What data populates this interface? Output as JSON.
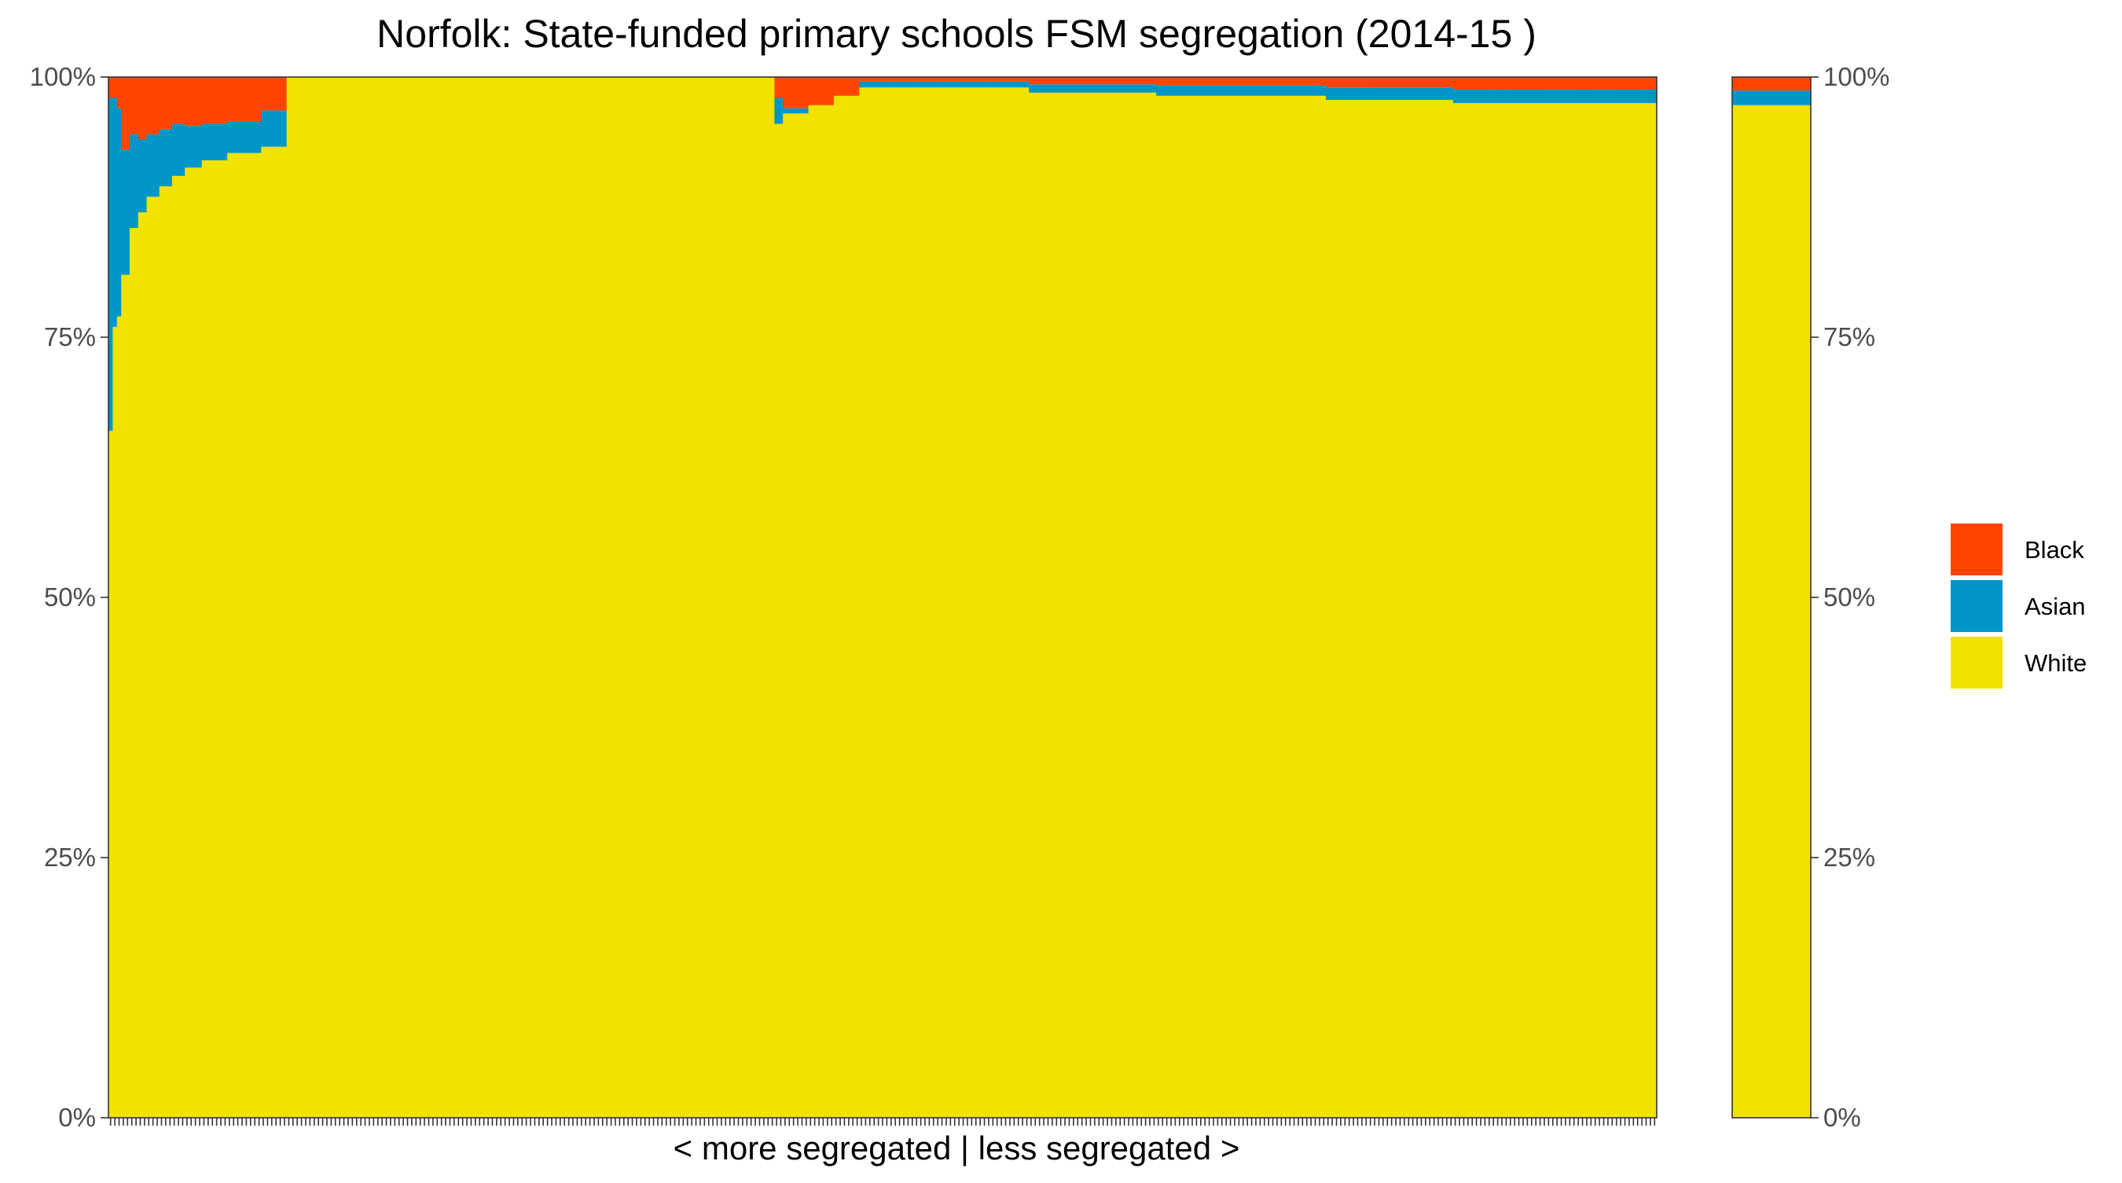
{
  "chart_data": {
    "type": "bar",
    "stacked": true,
    "normalized": true,
    "title": "Norfolk: State-funded primary schools FSM segregation (2014-15 )",
    "xlabel": "< more segregated | less segregated >",
    "ylabel": "",
    "ylim": [
      0,
      100
    ],
    "y_ticks": [
      "0%",
      "25%",
      "50%",
      "75%",
      "100%"
    ],
    "y_tick_values": [
      0,
      25,
      50,
      75,
      100
    ],
    "y_axis_both_sides": true,
    "grid": false,
    "legend_position": "right",
    "legend": [
      {
        "name": "Black",
        "color": "#FF4500"
      },
      {
        "name": "Asian",
        "color": "#0096C8"
      },
      {
        "name": "White",
        "color": "#F2E200"
      }
    ],
    "schools_panel": {
      "description_units": "percent of FSM pupils; each school one bar, ordered from more to less segregated",
      "segments": [
        {
          "count": 1,
          "white": 66,
          "asian": 32,
          "black": 2
        },
        {
          "count": 1,
          "white": 76,
          "asian": 22,
          "black": 2
        },
        {
          "count": 1,
          "white": 77,
          "asian": 20,
          "black": 3
        },
        {
          "count": 2,
          "white": 81,
          "asian": 12,
          "black": 7
        },
        {
          "count": 2,
          "white": 85.5,
          "asian": 9,
          "black": 5.5
        },
        {
          "count": 2,
          "white": 87,
          "asian": 7,
          "black": 6
        },
        {
          "count": 3,
          "white": 88.5,
          "asian": 6,
          "black": 5.5
        },
        {
          "count": 3,
          "white": 89.5,
          "asian": 5.5,
          "black": 5
        },
        {
          "count": 3,
          "white": 90.5,
          "asian": 5,
          "black": 4.5
        },
        {
          "count": 4,
          "white": 91.3,
          "asian": 4,
          "black": 4.7
        },
        {
          "count": 6,
          "white": 92,
          "asian": 3.5,
          "black": 4.5
        },
        {
          "count": 8,
          "white": 92.7,
          "asian": 3,
          "black": 4.3
        },
        {
          "count": 6,
          "white": 93.3,
          "asian": 3.5,
          "black": 3.2
        },
        {
          "count": 115,
          "white": 100,
          "asian": 0,
          "black": 0
        },
        {
          "count": 2,
          "white": 95.5,
          "asian": 2.5,
          "black": 2
        },
        {
          "count": 6,
          "white": 96.5,
          "asian": 0.5,
          "black": 3
        },
        {
          "count": 6,
          "white": 97.3,
          "asian": 0,
          "black": 2.7
        },
        {
          "count": 6,
          "white": 98.2,
          "asian": 0,
          "black": 1.8
        },
        {
          "count": 40,
          "white": 99,
          "asian": 0.6,
          "black": 0.4
        },
        {
          "count": 30,
          "white": 98.5,
          "asian": 0.8,
          "black": 0.7
        },
        {
          "count": 40,
          "white": 98.2,
          "asian": 1,
          "black": 0.8
        },
        {
          "count": 30,
          "white": 97.8,
          "asian": 1.2,
          "black": 1
        },
        {
          "count": 30,
          "white": 97.5,
          "asian": 1.3,
          "black": 1.2
        },
        {
          "count": 18,
          "white": 97.5,
          "asian": 1.3,
          "black": 1.2
        }
      ]
    },
    "overall_panel": {
      "white": 97.3,
      "asian": 1.4,
      "black": 1.3
    }
  }
}
